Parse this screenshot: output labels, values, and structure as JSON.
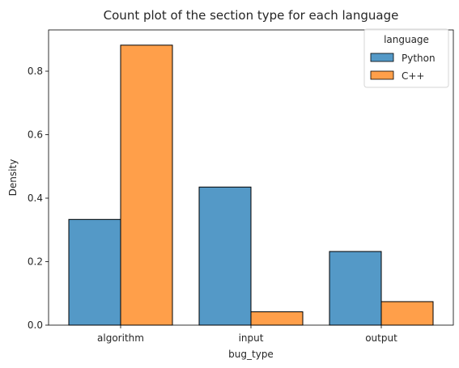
{
  "chart_data": {
    "type": "bar",
    "title": "Count plot of the section type for each language",
    "xlabel": "bug_type",
    "ylabel": "Density",
    "categories": [
      "algorithm",
      "input",
      "output"
    ],
    "series": [
      {
        "name": "Python",
        "values": [
          0.333,
          0.435,
          0.232
        ],
        "color": "#5499c7"
      },
      {
        "name": "C++",
        "values": [
          0.882,
          0.042,
          0.074
        ],
        "color": "#ff9f4a"
      }
    ],
    "ylim": [
      0,
      0.93
    ],
    "yticks": [
      "0.0",
      "0.2",
      "0.4",
      "0.6",
      "0.8"
    ],
    "grid": false,
    "legend": {
      "title": "language",
      "position": "top-right"
    }
  }
}
